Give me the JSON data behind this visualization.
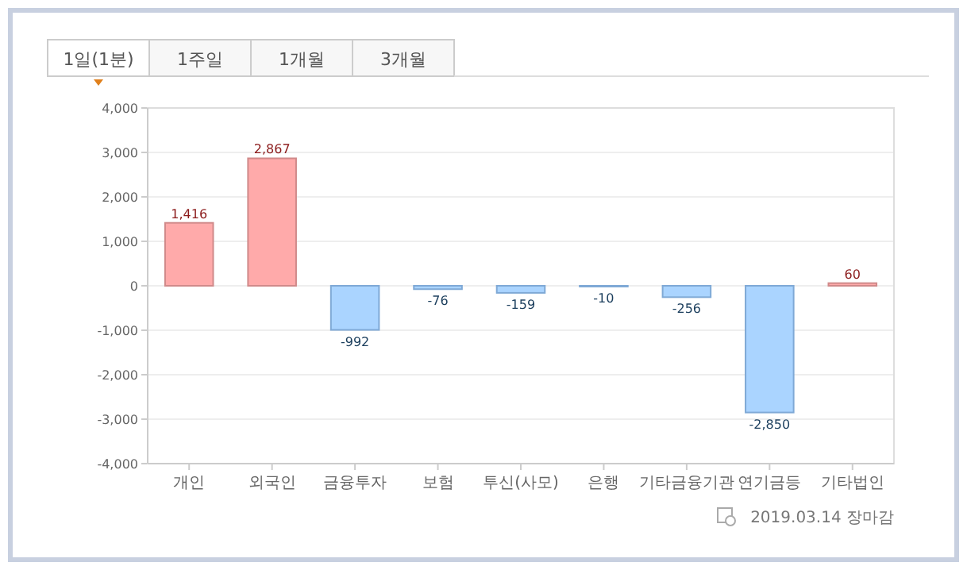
{
  "chart_data": {
    "type": "bar",
    "categories": [
      "개인",
      "외국인",
      "금융투자",
      "보험",
      "투신(사모)",
      "은행",
      "기타금융기관",
      "연기금등",
      "기타법인"
    ],
    "values": [
      1416,
      2867,
      -992,
      -76,
      -159,
      -10,
      -256,
      -2850,
      60
    ],
    "colors": [
      "#ffaaaa",
      "#ffaaaa",
      "#aad4ff",
      "#aad4ff",
      "#aad4ff",
      "#aad4ff",
      "#aad4ff",
      "#aad4ff",
      "#ffaaaa"
    ],
    "value_labels": [
      "1,416",
      "2,867",
      "-992",
      "-76",
      "-159",
      "-10",
      "-256",
      "-2,850",
      "60"
    ],
    "ylim": [
      -4000,
      4000
    ],
    "yticks": [
      {
        "value": -4000,
        "label": "-4,000"
      },
      {
        "value": -3000,
        "label": "-3,000"
      },
      {
        "value": -2000,
        "label": "-2,000"
      },
      {
        "value": -1000,
        "label": "-1,000"
      },
      0,
      {
        "value": 1000,
        "label": "1,000"
      },
      {
        "value": 2000,
        "label": "2,000"
      },
      {
        "value": 3000,
        "label": "3,000"
      },
      {
        "value": 4000,
        "label": "4,000"
      }
    ],
    "grid": "y",
    "annotations": [
      "1일(1분)",
      "1주일",
      "1개월",
      "3개월",
      "2019.03.14 장마감"
    ]
  }
}
